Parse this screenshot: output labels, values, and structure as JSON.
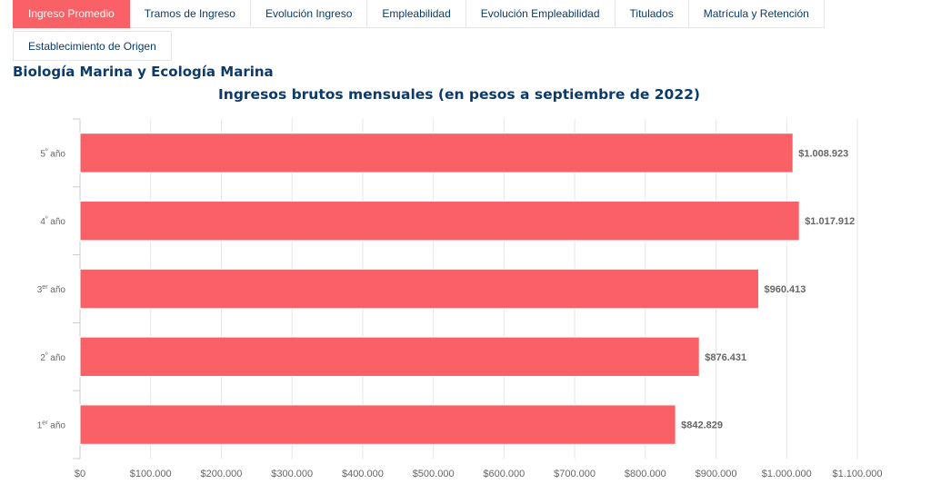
{
  "tabs": [
    {
      "label": "Ingreso Promedio",
      "active": true
    },
    {
      "label": "Tramos de Ingreso",
      "active": false
    },
    {
      "label": "Evolución Ingreso",
      "active": false
    },
    {
      "label": "Empleabilidad",
      "active": false
    },
    {
      "label": "Evolución Empleabilidad",
      "active": false
    },
    {
      "label": "Titulados",
      "active": false
    },
    {
      "label": "Matrícula y Retención",
      "active": false
    },
    {
      "label": "Establecimiento de Origen",
      "active": false
    }
  ],
  "career_title": "Biología Marina y Ecología Marina",
  "colors": {
    "bar": "#f96167",
    "accent": "#f96167",
    "title": "#0b3a6b"
  },
  "chart_data": {
    "type": "bar",
    "orientation": "horizontal",
    "title": "Ingresos brutos mensuales (en pesos a septiembre de 2022)",
    "categories": [
      {
        "base": "5",
        "sup": "º",
        "rest": " año"
      },
      {
        "base": "4",
        "sup": "º",
        "rest": " año"
      },
      {
        "base": "3",
        "sup": "er",
        "rest": " año"
      },
      {
        "base": "2",
        "sup": "º",
        "rest": " año"
      },
      {
        "base": "1",
        "sup": "er",
        "rest": " año"
      }
    ],
    "values": [
      1008923,
      1017912,
      960413,
      876431,
      842829
    ],
    "value_labels": [
      "$1.008.923",
      "$1.017.912",
      "$960.413",
      "$876.431",
      "$842.829"
    ],
    "xlim": [
      0,
      1100000
    ],
    "ticks": [
      0,
      100000,
      200000,
      300000,
      400000,
      500000,
      600000,
      700000,
      800000,
      900000,
      1000000,
      1100000
    ],
    "tick_labels": [
      "$0",
      "$100.000",
      "$200.000",
      "$300.000",
      "$400.000",
      "$500.000",
      "$600.000",
      "$700.000",
      "$800.000",
      "$900.000",
      "$1.000.000",
      "$1.100.000"
    ],
    "grid": true
  }
}
